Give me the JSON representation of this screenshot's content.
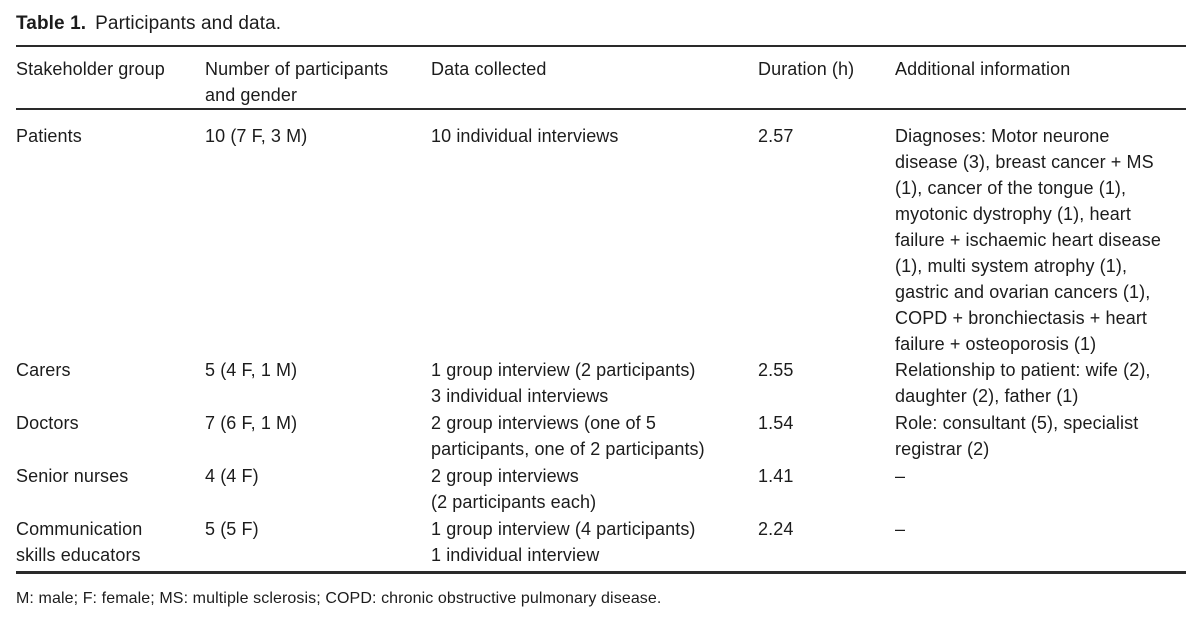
{
  "caption": {
    "label": "Table 1.",
    "text": "Participants and data."
  },
  "table": {
    "columns": [
      "Stakeholder group",
      "Number of participants\nand gender",
      "Data collected",
      "Duration (h)",
      "Additional information"
    ],
    "rows": [
      {
        "group": "Patients",
        "participants": "10 (7 F, 3 M)",
        "data_collected": "10 individual interviews",
        "duration": "2.57",
        "additional": "Diagnoses: Motor neurone\ndisease (3), breast cancer + MS\n(1), cancer of the tongue (1),\nmyotonic dystrophy (1), heart\nfailure + ischaemic heart disease\n(1), multi system atrophy (1),\ngastric and ovarian cancers (1),\nCOPD + bronchiectasis + heart\nfailure + osteoporosis (1)"
      },
      {
        "group": "Carers",
        "participants": "5 (4 F, 1 M)",
        "data_collected": "1 group interview (2 participants)\n3 individual interviews",
        "duration": "2.55",
        "additional": "Relationship to patient: wife (2),\ndaughter (2), father (1)"
      },
      {
        "group": "Doctors",
        "participants": "7 (6 F, 1 M)",
        "data_collected": "2 group interviews (one of 5\nparticipants, one of 2 participants)",
        "duration": "1.54",
        "additional": "Role: consultant (5), specialist\nregistrar (2)"
      },
      {
        "group": "Senior nurses",
        "participants": "4 (4 F)",
        "data_collected": "2 group interviews\n(2 participants each)",
        "duration": "1.41",
        "additional": "–"
      },
      {
        "group": "Communication\nskills educators",
        "participants": "5 (5 F)",
        "data_collected": "1 group interview (4 participants)\n1 individual interview",
        "duration": "2.24",
        "additional": "–"
      }
    ]
  },
  "footnote": "M: male; F: female; MS: multiple sclerosis; COPD: chronic obstructive pulmonary disease."
}
